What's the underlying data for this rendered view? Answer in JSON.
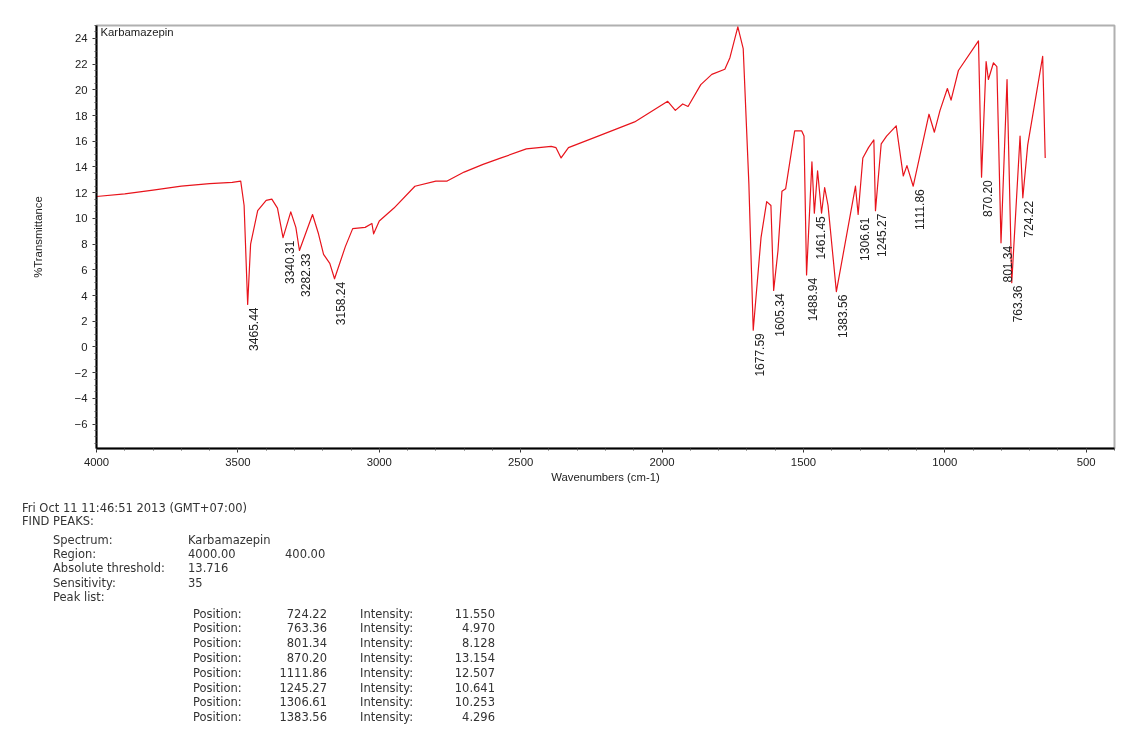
{
  "chart_data": {
    "type": "line",
    "title": "Karbamazepin",
    "xlabel": "Wavenumbers (cm-1)",
    "ylabel": "%Transmittance",
    "xlim": [
      4000,
      400
    ],
    "ylim": [
      -7.9,
      25
    ],
    "xticks": [
      4000,
      3500,
      3000,
      2500,
      2000,
      1500,
      1000,
      500
    ],
    "yticks": [
      -6,
      -4,
      -2,
      0,
      2,
      4,
      6,
      8,
      10,
      12,
      14,
      16,
      18,
      20,
      22,
      24
    ],
    "color": "#e8141c",
    "x": [
      4000,
      3900,
      3800,
      3700,
      3600,
      3520,
      3490,
      3478,
      3465.44,
      3455,
      3430,
      3400,
      3380,
      3360,
      3340.31,
      3313,
      3295,
      3282.33,
      3236,
      3215,
      3197,
      3175,
      3158.24,
      3120,
      3094,
      3050,
      3026,
      3020,
      3000,
      2948,
      2874,
      2800,
      2760,
      2700,
      2633,
      2569,
      2480,
      2392,
      2375,
      2357,
      2331,
      2226,
      2097,
      1980,
      1953,
      1927,
      1908,
      1863,
      1824,
      1778,
      1760,
      1732,
      1713,
      1693,
      1677.59,
      1650,
      1630,
      1615,
      1605.34,
      1590,
      1576,
      1563,
      1531,
      1506,
      1498,
      1488.94,
      1470,
      1461.45,
      1450,
      1436,
      1425,
      1413,
      1383.56,
      1316,
      1306.61,
      1290,
      1270,
      1251,
      1245.27,
      1225,
      1206,
      1172,
      1147,
      1134,
      1111.86,
      1056,
      1037,
      1017,
      991,
      978,
      952,
      881,
      870.2,
      854,
      846,
      828,
      816,
      801.34,
      780,
      763.36,
      734,
      724.22,
      707,
      654,
      645
    ],
    "values": [
      11.7,
      11.9,
      12.2,
      12.5,
      12.7,
      12.8,
      12.9,
      11.0,
      3.3,
      8.0,
      10.6,
      11.4,
      11.5,
      10.8,
      8.5,
      10.5,
      9.3,
      7.5,
      10.3,
      8.8,
      7.2,
      6.5,
      5.3,
      7.8,
      9.2,
      9.3,
      9.6,
      8.8,
      9.8,
      10.8,
      12.5,
      12.9,
      12.9,
      13.6,
      14.2,
      14.7,
      15.4,
      15.6,
      15.5,
      14.7,
      15.5,
      16.4,
      17.5,
      19.1,
      18.4,
      18.9,
      18.7,
      20.4,
      21.2,
      21.6,
      22.5,
      24.9,
      23.2,
      12.7,
      1.3,
      8.5,
      11.3,
      11.0,
      4.4,
      7.5,
      12.1,
      12.3,
      16.8,
      16.8,
      16.4,
      5.6,
      14.4,
      10.4,
      13.7,
      10.4,
      12.4,
      11.0,
      4.3,
      12.5,
      10.3,
      14.7,
      15.5,
      16.1,
      10.6,
      15.8,
      16.4,
      17.2,
      13.3,
      14.1,
      12.5,
      18.1,
      16.7,
      18.4,
      20.1,
      19.2,
      21.5,
      23.8,
      13.2,
      22.2,
      20.8,
      22.1,
      21.8,
      8.1,
      20.8,
      5.0,
      16.4,
      11.6,
      15.7,
      22.6,
      14.7
    ],
    "annotations": [
      {
        "text": "3465.44",
        "x": 3465.44,
        "y": 3.3
      },
      {
        "text": "3340.31",
        "x": 3340.31,
        "y": 8.5
      },
      {
        "text": "3282.33",
        "x": 3282.33,
        "y": 7.5
      },
      {
        "text": "3158.24",
        "x": 3158.24,
        "y": 5.3
      },
      {
        "text": "1677.59",
        "x": 1677.59,
        "y": 1.3
      },
      {
        "text": "1605.34",
        "x": 1605.34,
        "y": 4.4
      },
      {
        "text": "1488.94",
        "x": 1488.94,
        "y": 5.6
      },
      {
        "text": "1461.45",
        "x": 1461.45,
        "y": 10.4
      },
      {
        "text": "1383.56",
        "x": 1383.56,
        "y": 4.3
      },
      {
        "text": "1306.61",
        "x": 1306.61,
        "y": 10.3
      },
      {
        "text": "1245.27",
        "x": 1245.27,
        "y": 10.6
      },
      {
        "text": "1111.86",
        "x": 1111.86,
        "y": 12.5
      },
      {
        "text": "870.20",
        "x": 870.2,
        "y": 13.2
      },
      {
        "text": "801.34",
        "x": 801.34,
        "y": 8.1
      },
      {
        "text": "763.36",
        "x": 763.36,
        "y": 5.0
      },
      {
        "text": "724.22",
        "x": 724.22,
        "y": 11.6
      },
      "Fri Oct 11 11:46:51 2013 (GMT+07:00)",
      "FIND PEAKS:",
      "Spectrum:\tKarbamazepin",
      "Region:\t4000.00\t400.00",
      "Absolute threshold:\t13.716",
      "Sensitivity:\t35",
      "Peak list:",
      "Position:\t724.22\tIntensity:\t11.550",
      "Position:\t763.36\tIntensity:\t4.970",
      "Position:\t801.34\tIntensity:\t8.128",
      "Position:\t870.20\tIntensity:\t13.154",
      "Position:\t1111.86\tIntensity:\t12.507",
      "Position:\t1245.27\tIntensity:\t10.641",
      "Position:\t1306.61\tIntensity:\t10.253",
      "Position:\t1383.56\tIntensity:\t4.296"
    ]
  }
}
